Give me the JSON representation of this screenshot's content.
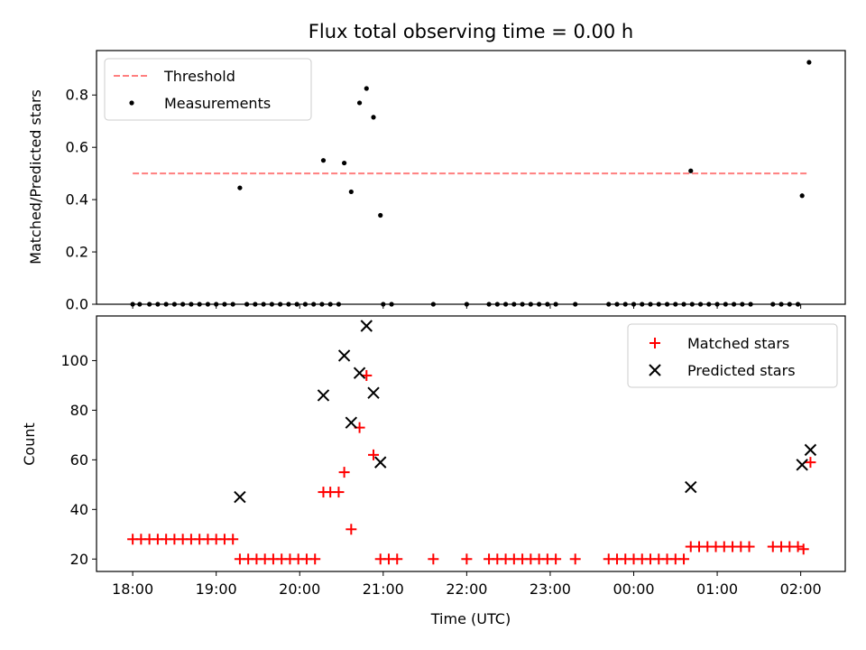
{
  "chart_data": [
    {
      "type": "scatter",
      "title": "Flux total observing time = 0.00 h",
      "xlabel": "",
      "ylabel": "Matched/Predicted stars",
      "ylim": [
        0,
        0.97
      ],
      "xlim": [
        "17:34",
        "02:32"
      ],
      "yticks": [
        "0.0",
        "0.2",
        "0.4",
        "0.6",
        "0.8"
      ],
      "ytick_values": [
        0,
        0.2,
        0.4,
        0.6,
        0.8
      ],
      "grid": false,
      "legend": "top-left",
      "legend_entries": [
        "Threshold",
        "Measurements"
      ],
      "series": [
        {
          "name": "Threshold",
          "style": "dashed-line",
          "color": "#ff7f7f",
          "points": [
            [
              "18:00",
              0.5
            ],
            [
              "02:05",
              0.5
            ]
          ]
        },
        {
          "name": "Measurements",
          "style": "dot",
          "color": "#000000",
          "points": [
            [
              "18:00",
              0
            ],
            [
              "18:05",
              0
            ],
            [
              "18:12",
              0
            ],
            [
              "18:18",
              0
            ],
            [
              "18:24",
              0
            ],
            [
              "18:30",
              0
            ],
            [
              "18:36",
              0
            ],
            [
              "18:42",
              0
            ],
            [
              "18:48",
              0
            ],
            [
              "18:54",
              0
            ],
            [
              "19:00",
              0
            ],
            [
              "19:06",
              0
            ],
            [
              "19:12",
              0
            ],
            [
              "19:17",
              0.445
            ],
            [
              "19:22",
              0
            ],
            [
              "19:28",
              0
            ],
            [
              "19:34",
              0
            ],
            [
              "19:40",
              0
            ],
            [
              "19:46",
              0
            ],
            [
              "19:52",
              0
            ],
            [
              "19:58",
              0
            ],
            [
              "20:04",
              0
            ],
            [
              "20:10",
              0
            ],
            [
              "20:16",
              0
            ],
            [
              "20:17",
              0.55
            ],
            [
              "20:22",
              0
            ],
            [
              "20:28",
              0
            ],
            [
              "20:32",
              0.54
            ],
            [
              "20:37",
              0.43
            ],
            [
              "20:43",
              0.77
            ],
            [
              "20:48",
              0.825
            ],
            [
              "20:53",
              0.715
            ],
            [
              "20:58",
              0.34
            ],
            [
              "21:00",
              0
            ],
            [
              "21:06",
              0
            ],
            [
              "21:36",
              0
            ],
            [
              "22:00",
              0
            ],
            [
              "22:16",
              0
            ],
            [
              "22:22",
              0
            ],
            [
              "22:28",
              0
            ],
            [
              "22:34",
              0
            ],
            [
              "22:40",
              0
            ],
            [
              "22:46",
              0
            ],
            [
              "22:52",
              0
            ],
            [
              "22:58",
              0
            ],
            [
              "23:04",
              0
            ],
            [
              "23:18",
              0
            ],
            [
              "23:42",
              0
            ],
            [
              "23:48",
              0
            ],
            [
              "23:54",
              0
            ],
            [
              "00:00",
              0
            ],
            [
              "00:06",
              0
            ],
            [
              "00:12",
              0
            ],
            [
              "00:18",
              0
            ],
            [
              "00:24",
              0
            ],
            [
              "00:30",
              0
            ],
            [
              "00:36",
              0
            ],
            [
              "00:41",
              0.51
            ],
            [
              "00:42",
              0
            ],
            [
              "00:48",
              0
            ],
            [
              "00:54",
              0
            ],
            [
              "01:00",
              0
            ],
            [
              "01:06",
              0
            ],
            [
              "01:12",
              0
            ],
            [
              "01:18",
              0
            ],
            [
              "01:24",
              0
            ],
            [
              "01:40",
              0
            ],
            [
              "01:46",
              0
            ],
            [
              "01:52",
              0
            ],
            [
              "01:58",
              0
            ],
            [
              "02:01",
              0.415
            ],
            [
              "02:06",
              0.925
            ]
          ]
        }
      ]
    },
    {
      "type": "scatter",
      "title": "",
      "xlabel": "Time (UTC)",
      "ylabel": "Count",
      "ylim": [
        15,
        118
      ],
      "xlim": [
        "17:34",
        "02:32"
      ],
      "yticks": [
        "20",
        "40",
        "60",
        "80",
        "100"
      ],
      "ytick_values": [
        20,
        40,
        60,
        80,
        100
      ],
      "xticks": [
        "18:00",
        "19:00",
        "20:00",
        "21:00",
        "22:00",
        "23:00",
        "00:00",
        "01:00",
        "02:00"
      ],
      "grid": false,
      "legend": "top-right",
      "legend_entries": [
        "Matched stars",
        "Predicted stars"
      ],
      "series": [
        {
          "name": "Matched stars",
          "style": "plus",
          "color": "#ff0000",
          "points": [
            [
              "18:00",
              28
            ],
            [
              "18:06",
              28
            ],
            [
              "18:12",
              28
            ],
            [
              "18:18",
              28
            ],
            [
              "18:24",
              28
            ],
            [
              "18:30",
              28
            ],
            [
              "18:36",
              28
            ],
            [
              "18:42",
              28
            ],
            [
              "18:48",
              28
            ],
            [
              "18:54",
              28
            ],
            [
              "19:00",
              28
            ],
            [
              "19:06",
              28
            ],
            [
              "19:12",
              28
            ],
            [
              "19:17",
              20
            ],
            [
              "19:23",
              20
            ],
            [
              "19:29",
              20
            ],
            [
              "19:35",
              20
            ],
            [
              "19:41",
              20
            ],
            [
              "19:47",
              20
            ],
            [
              "19:53",
              20
            ],
            [
              "19:59",
              20
            ],
            [
              "20:05",
              20
            ],
            [
              "20:11",
              20
            ],
            [
              "20:17",
              47
            ],
            [
              "20:22",
              47
            ],
            [
              "20:28",
              47
            ],
            [
              "20:32",
              55
            ],
            [
              "20:37",
              32
            ],
            [
              "20:43",
              73
            ],
            [
              "20:48",
              94
            ],
            [
              "20:53",
              62
            ],
            [
              "20:58",
              20
            ],
            [
              "21:04",
              20
            ],
            [
              "21:10",
              20
            ],
            [
              "21:36",
              20
            ],
            [
              "22:00",
              20
            ],
            [
              "22:16",
              20
            ],
            [
              "22:22",
              20
            ],
            [
              "22:28",
              20
            ],
            [
              "22:34",
              20
            ],
            [
              "22:40",
              20
            ],
            [
              "22:46",
              20
            ],
            [
              "22:52",
              20
            ],
            [
              "22:58",
              20
            ],
            [
              "23:04",
              20
            ],
            [
              "23:18",
              20
            ],
            [
              "23:42",
              20
            ],
            [
              "23:48",
              20
            ],
            [
              "23:54",
              20
            ],
            [
              "00:00",
              20
            ],
            [
              "00:06",
              20
            ],
            [
              "00:12",
              20
            ],
            [
              "00:18",
              20
            ],
            [
              "00:24",
              20
            ],
            [
              "00:30",
              20
            ],
            [
              "00:36",
              20
            ],
            [
              "00:41",
              25
            ],
            [
              "00:47",
              25
            ],
            [
              "00:53",
              25
            ],
            [
              "00:59",
              25
            ],
            [
              "01:05",
              25
            ],
            [
              "01:11",
              25
            ],
            [
              "01:17",
              25
            ],
            [
              "01:23",
              25
            ],
            [
              "01:40",
              25
            ],
            [
              "01:46",
              25
            ],
            [
              "01:52",
              25
            ],
            [
              "01:58",
              25
            ],
            [
              "02:02",
              24
            ],
            [
              "02:07",
              59
            ]
          ]
        },
        {
          "name": "Predicted stars",
          "style": "x",
          "color": "#000000",
          "points": [
            [
              "19:17",
              45
            ],
            [
              "20:17",
              86
            ],
            [
              "20:32",
              102
            ],
            [
              "20:37",
              75
            ],
            [
              "20:43",
              95
            ],
            [
              "20:48",
              114
            ],
            [
              "20:53",
              87
            ],
            [
              "20:58",
              59
            ],
            [
              "00:41",
              49
            ],
            [
              "02:01",
              58
            ],
            [
              "02:07",
              64
            ]
          ]
        }
      ]
    }
  ]
}
